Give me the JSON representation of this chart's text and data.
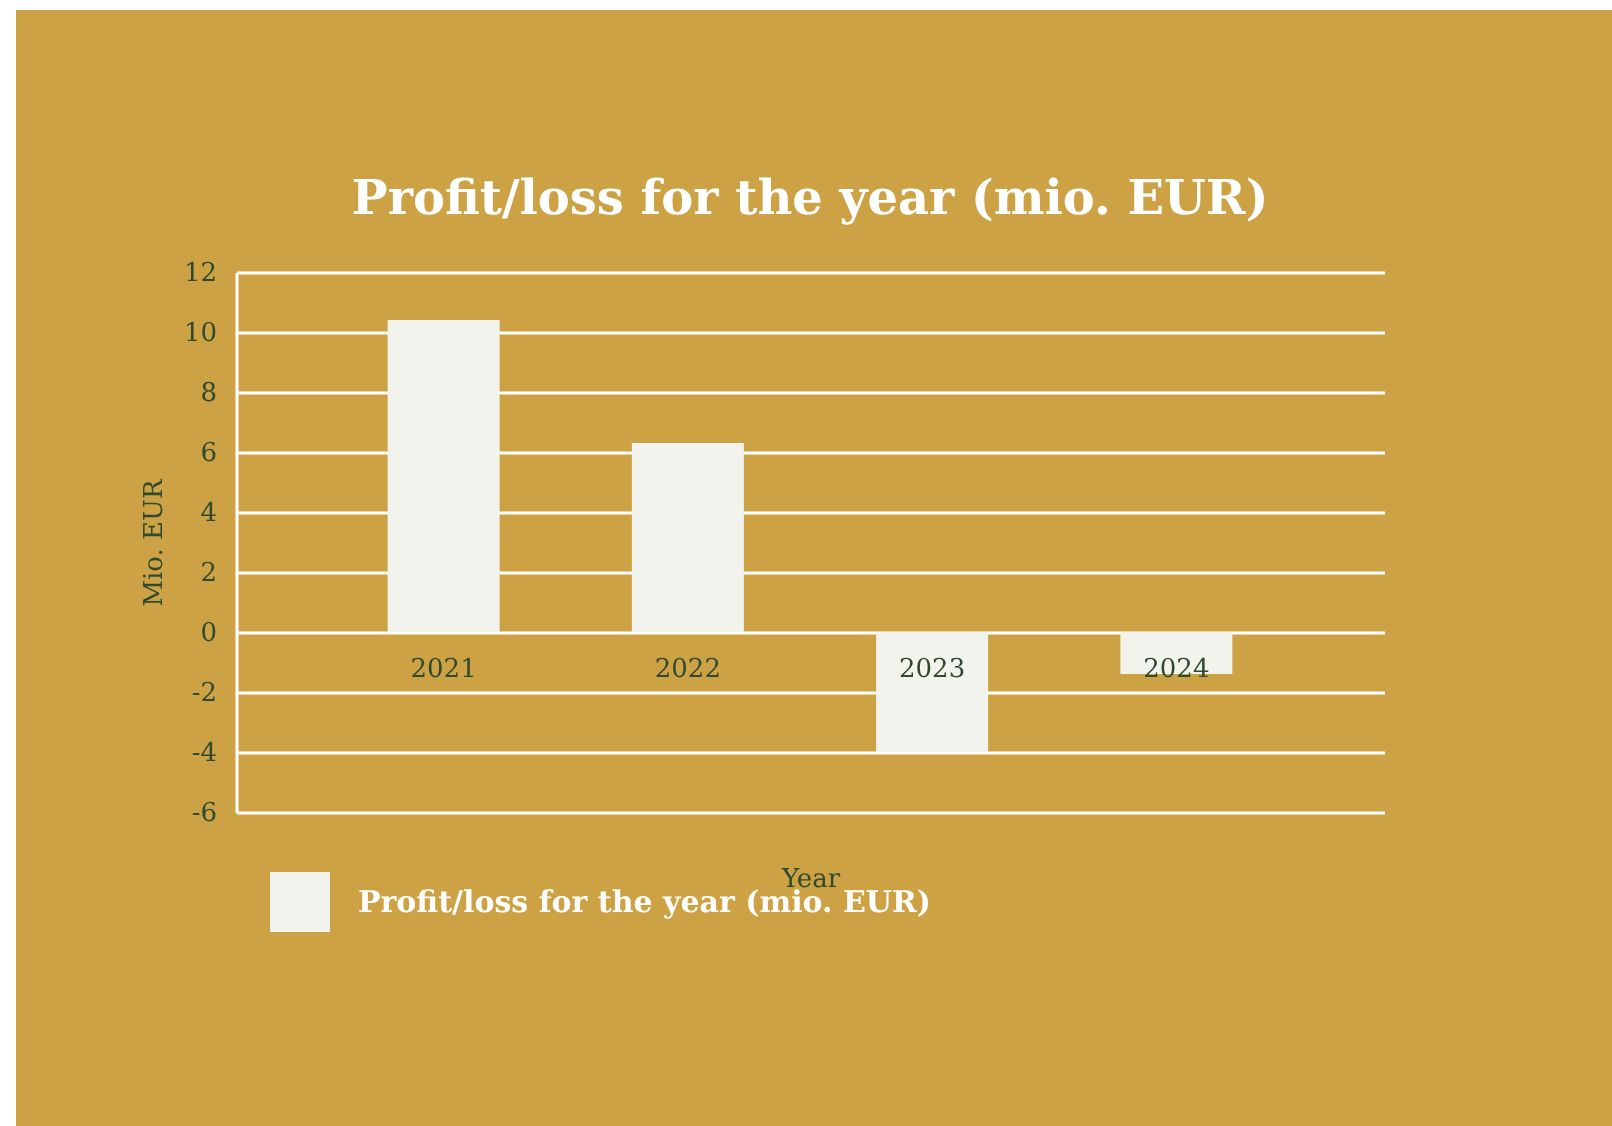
{
  "chart_data": {
    "type": "bar",
    "title": "Profit/loss for the year (mio. EUR)",
    "xlabel": "Year",
    "ylabel": "Mio. EUR",
    "categories": [
      "2021",
      "2022",
      "2023",
      "2024"
    ],
    "series": [
      {
        "name": "Profit/loss for the year (mio. EUR)",
        "color": "#f3f3ee",
        "values": [
          10.4,
          6.3,
          -4.0,
          -1.4
        ]
      }
    ],
    "ylim": [
      -6,
      12
    ],
    "yticks": [
      -6,
      -4,
      -2,
      0,
      2,
      4,
      6,
      8,
      10,
      12
    ],
    "grid": "y",
    "legend": "bottom left"
  }
}
